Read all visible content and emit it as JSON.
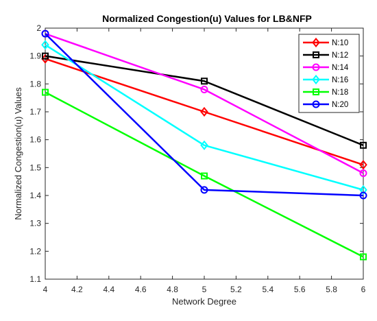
{
  "chart_data": {
    "type": "line",
    "title": "Normalized Congestion(u) Values for LB&NFP",
    "xlabel": "Network Degree",
    "ylabel": "Normalized Congestion(u) Values",
    "xlim": [
      4,
      6
    ],
    "ylim": [
      1.1,
      2
    ],
    "xticks": [
      "4",
      "4.2",
      "4.4",
      "4.6",
      "4.8",
      "5",
      "5.2",
      "5.4",
      "5.6",
      "5.8",
      "6"
    ],
    "yticks": [
      "1.1",
      "1.2",
      "1.3",
      "1.4",
      "1.5",
      "1.6",
      "1.7",
      "1.8",
      "1.9",
      "2"
    ],
    "x": [
      4,
      5,
      6
    ],
    "grid": false,
    "legend_position": "top-right",
    "series": [
      {
        "name": "N:10",
        "values": [
          1.89,
          1.7,
          1.51
        ],
        "color": "#ff0000",
        "marker": "diamond"
      },
      {
        "name": "N:12",
        "values": [
          1.9,
          1.81,
          1.58
        ],
        "color": "#000000",
        "marker": "square"
      },
      {
        "name": "N:14",
        "values": [
          1.98,
          1.78,
          1.48
        ],
        "color": "#ff00ff",
        "marker": "circle"
      },
      {
        "name": "N:16",
        "values": [
          1.94,
          1.58,
          1.42
        ],
        "color": "#00ffff",
        "marker": "diamond"
      },
      {
        "name": "N:18",
        "values": [
          1.77,
          1.47,
          1.18
        ],
        "color": "#00ff00",
        "marker": "square"
      },
      {
        "name": "N:20",
        "values": [
          1.98,
          1.42,
          1.4
        ],
        "color": "#0000ff",
        "marker": "circle"
      }
    ]
  }
}
